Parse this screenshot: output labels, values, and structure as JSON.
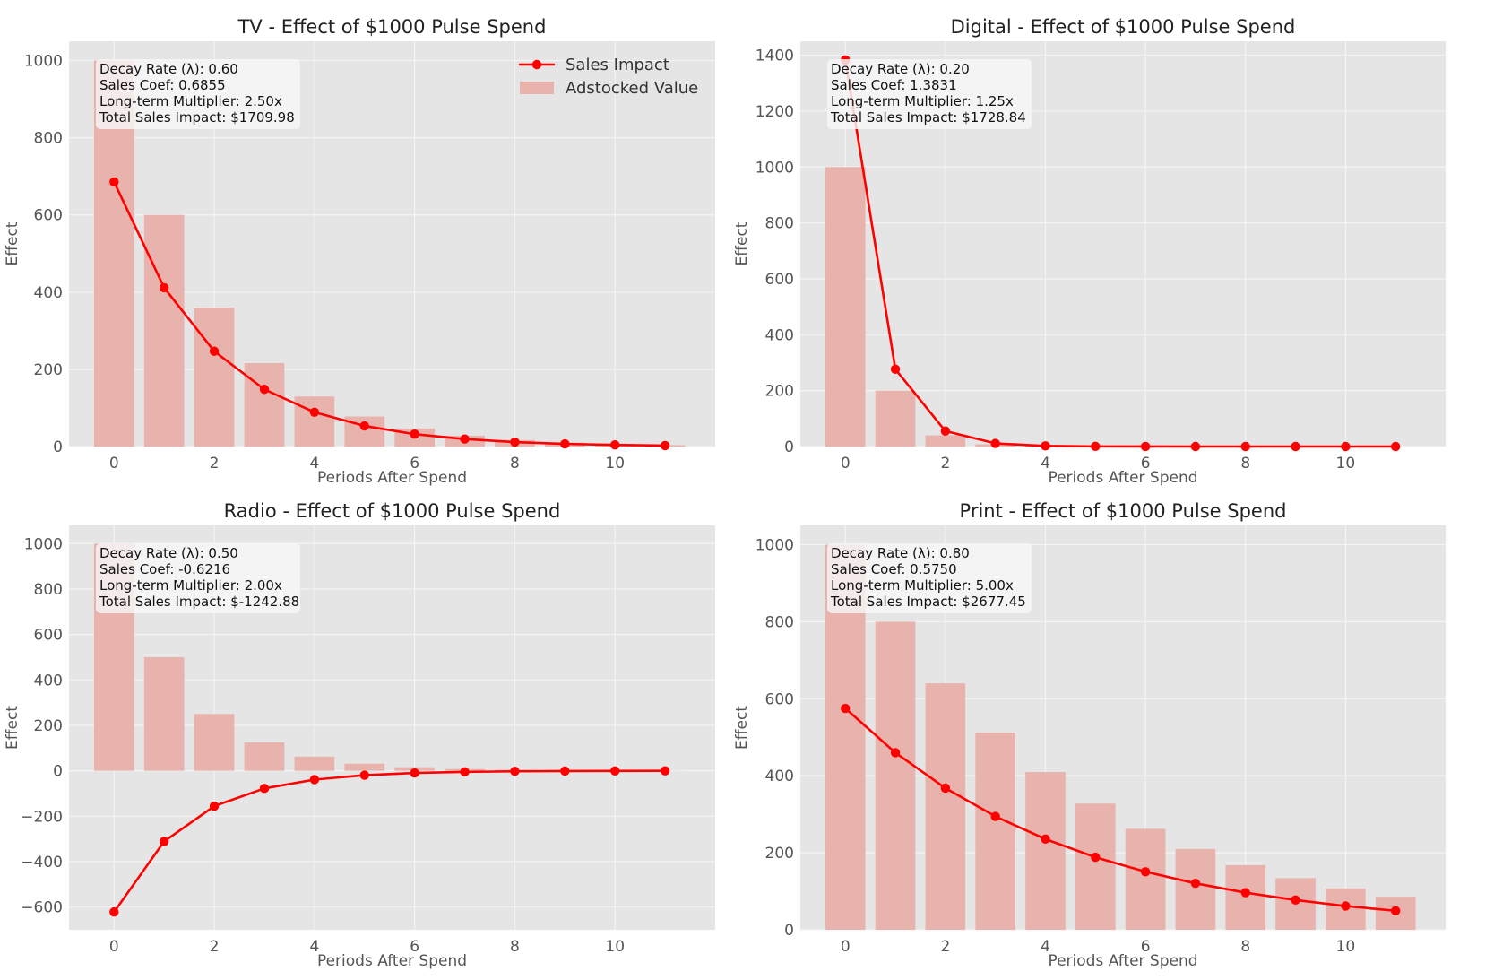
{
  "colors": {
    "panel_bg": "#e5e5e5",
    "grid": "#f4f4f4",
    "bar": "#e8b3ad",
    "line": "#ff0000",
    "ann_bg": "#f7f7f7"
  },
  "legend": {
    "line_label": "Sales Impact",
    "bar_label": "Adstocked Value"
  },
  "chart_data": [
    {
      "type": "bar+line",
      "title": "TV - Effect of $1000 Pulse Spend",
      "xlabel": "Periods After Spend",
      "ylabel": "Effect",
      "xlim": [
        -0.9,
        12.0
      ],
      "ylim": [
        0,
        1050
      ],
      "xticks": [
        0,
        2,
        4,
        6,
        8,
        10
      ],
      "yticks": [
        0,
        200,
        400,
        600,
        800,
        1000
      ],
      "x": [
        0,
        1,
        2,
        3,
        4,
        5,
        6,
        7,
        8,
        9,
        10,
        11
      ],
      "series": [
        {
          "name": "Adstocked Value",
          "kind": "bar",
          "values": [
            1000,
            600,
            360,
            216,
            129.6,
            77.8,
            46.7,
            28.0,
            16.8,
            10.1,
            6.0,
            3.6
          ]
        },
        {
          "name": "Sales Impact",
          "kind": "line",
          "values": [
            685.5,
            411.3,
            246.8,
            148.1,
            88.8,
            53.3,
            32.0,
            19.2,
            11.5,
            6.9,
            4.1,
            2.5
          ]
        }
      ],
      "annotation": [
        "Decay Rate (λ): 0.60",
        "Sales Coef: 0.6855",
        "Long-term Multiplier: 2.50x",
        "Total Sales Impact: $1709.98"
      ],
      "legend": true
    },
    {
      "type": "bar+line",
      "title": "Digital - Effect of $1000 Pulse Spend",
      "xlabel": "Periods After Spend",
      "ylabel": "Effect",
      "xlim": [
        -0.9,
        12.0
      ],
      "ylim": [
        0,
        1450
      ],
      "xticks": [
        0,
        2,
        4,
        6,
        8,
        10
      ],
      "yticks": [
        0,
        200,
        400,
        600,
        800,
        1000,
        1200,
        1400
      ],
      "x": [
        0,
        1,
        2,
        3,
        4,
        5,
        6,
        7,
        8,
        9,
        10,
        11
      ],
      "series": [
        {
          "name": "Adstocked Value",
          "kind": "bar",
          "values": [
            1000,
            200,
            40,
            8,
            1.6,
            0.3,
            0.1,
            0,
            0,
            0,
            0,
            0
          ]
        },
        {
          "name": "Sales Impact",
          "kind": "line",
          "values": [
            1383.1,
            276.6,
            55.3,
            11.1,
            2.2,
            0.4,
            0.1,
            0,
            0,
            0,
            0,
            0
          ]
        }
      ],
      "annotation": [
        "Decay Rate (λ): 0.20",
        "Sales Coef: 1.3831",
        "Long-term Multiplier: 1.25x",
        "Total Sales Impact: $1728.84"
      ],
      "legend": false
    },
    {
      "type": "bar+line",
      "title": "Radio - Effect of $1000 Pulse Spend",
      "xlabel": "Periods After Spend",
      "ylabel": "Effect",
      "xlim": [
        -0.9,
        12.0
      ],
      "ylim": [
        -700,
        1080
      ],
      "xticks": [
        0,
        2,
        4,
        6,
        8,
        10
      ],
      "yticks": [
        -600,
        -400,
        -200,
        0,
        200,
        400,
        600,
        800,
        1000
      ],
      "x": [
        0,
        1,
        2,
        3,
        4,
        5,
        6,
        7,
        8,
        9,
        10,
        11
      ],
      "series": [
        {
          "name": "Adstocked Value",
          "kind": "bar",
          "values": [
            1000,
            500,
            250,
            125,
            62.5,
            31.3,
            15.6,
            7.8,
            3.9,
            2.0,
            1.0,
            0.5
          ]
        },
        {
          "name": "Sales Impact",
          "kind": "line",
          "values": [
            -621.6,
            -310.8,
            -155.4,
            -77.7,
            -38.9,
            -19.4,
            -9.7,
            -4.9,
            -2.4,
            -1.2,
            -0.6,
            -0.3
          ]
        }
      ],
      "annotation": [
        "Decay Rate (λ): 0.50",
        "Sales Coef: -0.6216",
        "Long-term Multiplier: 2.00x",
        "Total Sales Impact: $-1242.88"
      ],
      "legend": false
    },
    {
      "type": "bar+line",
      "title": "Print - Effect of $1000 Pulse Spend",
      "xlabel": "Periods After Spend",
      "ylabel": "Effect",
      "xlim": [
        -0.9,
        12.0
      ],
      "ylim": [
        0,
        1050
      ],
      "xticks": [
        0,
        2,
        4,
        6,
        8,
        10
      ],
      "yticks": [
        0,
        200,
        400,
        600,
        800,
        1000
      ],
      "x": [
        0,
        1,
        2,
        3,
        4,
        5,
        6,
        7,
        8,
        9,
        10,
        11
      ],
      "series": [
        {
          "name": "Adstocked Value",
          "kind": "bar",
          "values": [
            1000,
            800,
            640,
            512,
            409.6,
            327.7,
            262.1,
            209.7,
            167.8,
            134.2,
            107.4,
            85.9
          ]
        },
        {
          "name": "Sales Impact",
          "kind": "line",
          "values": [
            575.0,
            460.0,
            368.0,
            294.4,
            235.5,
            188.4,
            150.7,
            120.6,
            96.5,
            77.2,
            61.7,
            49.4
          ]
        }
      ],
      "annotation": [
        "Decay Rate (λ): 0.80",
        "Sales Coef: 0.5750",
        "Long-term Multiplier: 5.00x",
        "Total Sales Impact: $2677.45"
      ],
      "legend": false
    }
  ]
}
